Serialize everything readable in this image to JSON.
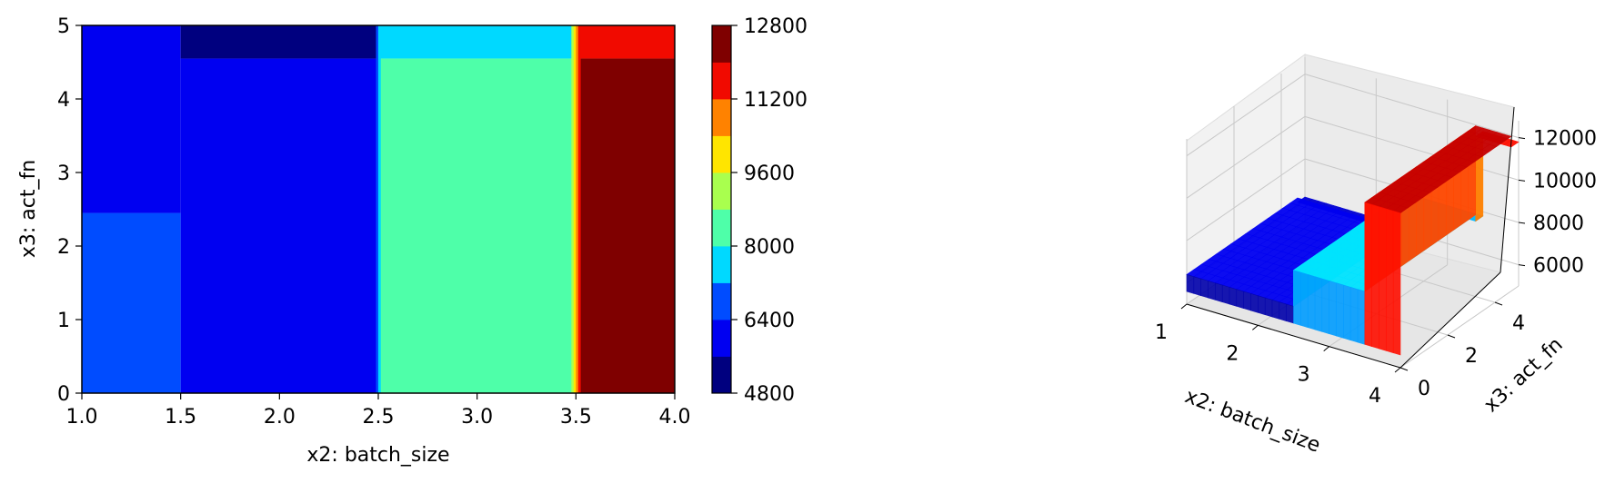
{
  "chart_data": [
    {
      "type": "heatmap",
      "subtype": "filled-contour",
      "title": "",
      "xlabel": "x2: batch_size",
      "ylabel": "x3: act_fn",
      "xlim": [
        1.0,
        4.0
      ],
      "ylim": [
        0,
        5
      ],
      "xticks": [
        "1.0",
        "1.5",
        "2.0",
        "2.5",
        "3.0",
        "3.5",
        "4.0"
      ],
      "yticks": [
        "0",
        "1",
        "2",
        "3",
        "4",
        "5"
      ],
      "colormap": "jet",
      "regions": [
        {
          "x": [
            1.0,
            1.5
          ],
          "y": [
            0.0,
            2.45
          ],
          "value": 6800
        },
        {
          "x": [
            1.0,
            1.5
          ],
          "y": [
            2.45,
            5.0
          ],
          "value": 6000
        },
        {
          "x": [
            1.5,
            2.5
          ],
          "y": [
            0.0,
            4.55
          ],
          "value": 6000
        },
        {
          "x": [
            1.5,
            2.5
          ],
          "y": [
            4.55,
            5.0
          ],
          "value": 5200
        },
        {
          "x": [
            2.5,
            3.5
          ],
          "y": [
            0.0,
            4.55
          ],
          "value": 8400
        },
        {
          "x": [
            2.5,
            3.5
          ],
          "y": [
            4.55,
            5.0
          ],
          "value": 7600
        },
        {
          "x": [
            3.5,
            4.0
          ],
          "y": [
            0.0,
            4.55
          ],
          "value": 12600
        },
        {
          "x": [
            3.5,
            4.0
          ],
          "y": [
            4.55,
            5.0
          ],
          "value": 11600
        }
      ],
      "colorbar": {
        "levels": [
          4800,
          5600,
          6400,
          7200,
          8000,
          8800,
          9600,
          10400,
          11200,
          12000,
          12800
        ],
        "colors": [
          "#00007f",
          "#0000f1",
          "#004cff",
          "#00d9ff",
          "#4effa9",
          "#a9ff4e",
          "#ffe500",
          "#ff8200",
          "#f10a00",
          "#7f0000"
        ],
        "tick_labels": [
          "4800",
          "6400",
          "8000",
          "9600",
          "11200",
          "12800"
        ]
      }
    },
    {
      "type": "surface",
      "title": "",
      "xlabel": "x2: batch_size",
      "ylabel": "x3: act_fn",
      "zlabel": "",
      "xticks": [
        "1",
        "2",
        "3",
        "4"
      ],
      "yticks": [
        "0",
        "2",
        "4"
      ],
      "zticks": [
        "6000",
        "8000",
        "10000",
        "12000"
      ],
      "zlim": [
        5000,
        12800
      ],
      "colormap": "jet",
      "pane_color": "#f2f2f2",
      "grid": true
    }
  ]
}
